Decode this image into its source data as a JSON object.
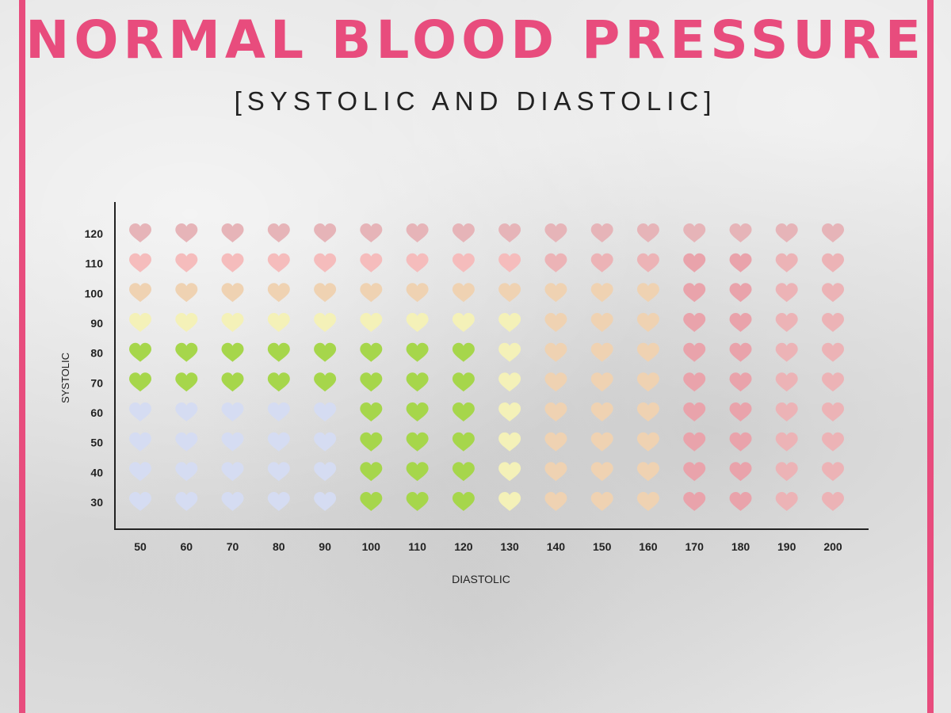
{
  "title": "NORMAL BLOOD PRESSURE",
  "subtitle": "[SYSTOLIC AND DIASTOLIC]",
  "colors": {
    "border": "#e84c7d",
    "title": "#e84c7d",
    "blue": "#d5dcf2",
    "green": "#a6d64b",
    "yellow": "#f4f1b8",
    "peach": "#efd2b2",
    "pink": "#f5bcbc",
    "lightred": "#ecb3b6",
    "red": "#e9a3ab",
    "muted": "#e6b4b8"
  },
  "chart_data": {
    "type": "heatmap",
    "xlabel": "DIASTOLIC",
    "ylabel": "SYSTOLIC",
    "x": [
      50,
      60,
      70,
      80,
      90,
      100,
      110,
      120,
      130,
      140,
      150,
      160,
      170,
      180,
      190,
      200
    ],
    "y": [
      30,
      40,
      50,
      60,
      70,
      80,
      90,
      100,
      110,
      120
    ],
    "marker": "heart-icon",
    "grid": false,
    "legend": "none",
    "cells": [
      [
        "blue",
        "blue",
        "blue",
        "blue",
        "blue",
        "green",
        "green",
        "green",
        "yellow",
        "peach",
        "peach",
        "peach",
        "red",
        "red",
        "lightred",
        "lightred"
      ],
      [
        "blue",
        "blue",
        "blue",
        "blue",
        "blue",
        "green",
        "green",
        "green",
        "yellow",
        "peach",
        "peach",
        "peach",
        "red",
        "red",
        "lightred",
        "lightred"
      ],
      [
        "blue",
        "blue",
        "blue",
        "blue",
        "blue",
        "green",
        "green",
        "green",
        "yellow",
        "peach",
        "peach",
        "peach",
        "red",
        "red",
        "lightred",
        "lightred"
      ],
      [
        "blue",
        "blue",
        "blue",
        "blue",
        "blue",
        "green",
        "green",
        "green",
        "yellow",
        "peach",
        "peach",
        "peach",
        "red",
        "red",
        "lightred",
        "lightred"
      ],
      [
        "green",
        "green",
        "green",
        "green",
        "green",
        "green",
        "green",
        "green",
        "yellow",
        "peach",
        "peach",
        "peach",
        "red",
        "red",
        "lightred",
        "lightred"
      ],
      [
        "green",
        "green",
        "green",
        "green",
        "green",
        "green",
        "green",
        "green",
        "yellow",
        "peach",
        "peach",
        "peach",
        "red",
        "red",
        "lightred",
        "lightred"
      ],
      [
        "yellow",
        "yellow",
        "yellow",
        "yellow",
        "yellow",
        "yellow",
        "yellow",
        "yellow",
        "yellow",
        "peach",
        "peach",
        "peach",
        "red",
        "red",
        "lightred",
        "lightred"
      ],
      [
        "peach",
        "peach",
        "peach",
        "peach",
        "peach",
        "peach",
        "peach",
        "peach",
        "peach",
        "peach",
        "peach",
        "peach",
        "red",
        "red",
        "lightred",
        "lightred"
      ],
      [
        "pink",
        "pink",
        "pink",
        "pink",
        "pink",
        "pink",
        "pink",
        "pink",
        "pink",
        "lightred",
        "lightred",
        "lightred",
        "red",
        "red",
        "lightred",
        "lightred"
      ],
      [
        "muted",
        "muted",
        "muted",
        "muted",
        "muted",
        "muted",
        "muted",
        "muted",
        "muted",
        "muted",
        "muted",
        "muted",
        "muted",
        "muted",
        "muted",
        "muted"
      ]
    ]
  }
}
